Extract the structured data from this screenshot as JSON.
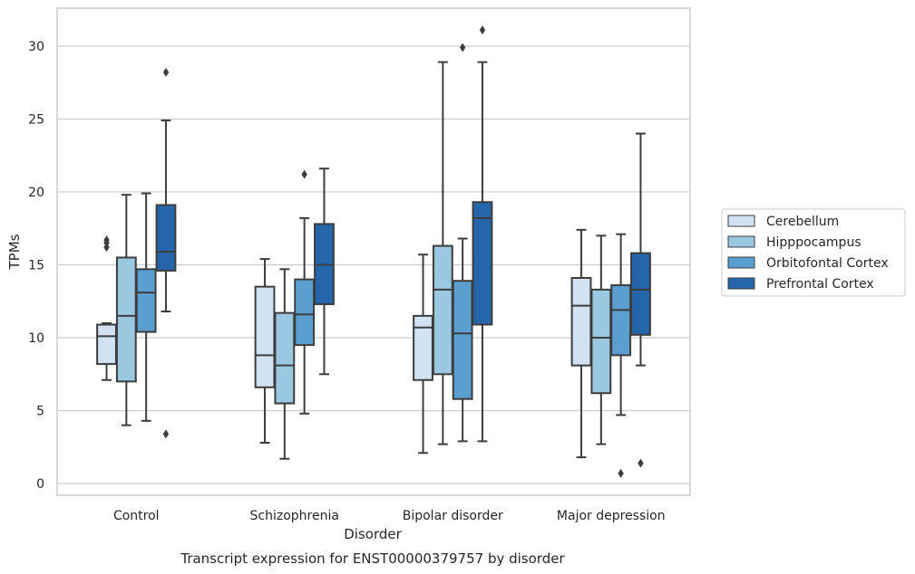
{
  "chart_data": {
    "type": "box",
    "title": "",
    "caption": "Transcript expression for ENST00000379757 by disorder",
    "xlabel": "Disorder",
    "ylabel": "TPMs",
    "ylim": [
      -0.8,
      32.6
    ],
    "yticks": [
      0,
      5,
      10,
      15,
      20,
      25,
      30
    ],
    "grid": "horizontal",
    "legend_position": "right",
    "categories": [
      "Control",
      "Schizophrenia",
      "Bipolar disorder",
      "Major depression"
    ],
    "series": [
      {
        "name": "Cerebellum",
        "color": "#d1e2f2",
        "boxes": [
          {
            "whislo": 7.1,
            "q1": 8.2,
            "med": 10.1,
            "q3": 10.9,
            "whishi": 11.0,
            "fliers": [
              16.2,
              16.5,
              16.7
            ]
          },
          {
            "whislo": 2.8,
            "q1": 6.6,
            "med": 8.8,
            "q3": 13.5,
            "whishi": 15.4,
            "fliers": []
          },
          {
            "whislo": 2.1,
            "q1": 7.1,
            "med": 10.7,
            "q3": 11.5,
            "whishi": 15.7,
            "fliers": []
          },
          {
            "whislo": 1.8,
            "q1": 8.1,
            "med": 12.2,
            "q3": 14.1,
            "whishi": 17.4,
            "fliers": []
          }
        ]
      },
      {
        "name": "Hipppocampus",
        "color": "#9ac8e0",
        "boxes": [
          {
            "whislo": 4.0,
            "q1": 7.0,
            "med": 11.5,
            "q3": 15.5,
            "whishi": 19.8,
            "fliers": []
          },
          {
            "whislo": 1.7,
            "q1": 5.5,
            "med": 8.1,
            "q3": 11.7,
            "whishi": 14.7,
            "fliers": []
          },
          {
            "whislo": 2.7,
            "q1": 7.5,
            "med": 13.3,
            "q3": 16.3,
            "whishi": 28.9,
            "fliers": []
          },
          {
            "whislo": 2.7,
            "q1": 6.2,
            "med": 10.0,
            "q3": 13.3,
            "whishi": 17.0,
            "fliers": []
          }
        ]
      },
      {
        "name": "Orbitofontal Cortex",
        "color": "#5a9fcf",
        "boxes": [
          {
            "whislo": 4.3,
            "q1": 10.4,
            "med": 13.1,
            "q3": 14.7,
            "whishi": 19.9,
            "fliers": []
          },
          {
            "whislo": 4.8,
            "q1": 9.5,
            "med": 11.6,
            "q3": 14.0,
            "whishi": 18.2,
            "fliers": [
              21.2
            ]
          },
          {
            "whislo": 2.9,
            "q1": 5.8,
            "med": 10.3,
            "q3": 13.9,
            "whishi": 16.8,
            "fliers": [
              29.9
            ]
          },
          {
            "whislo": 4.7,
            "q1": 8.8,
            "med": 11.9,
            "q3": 13.6,
            "whishi": 17.1,
            "fliers": [
              0.7
            ]
          }
        ]
      },
      {
        "name": "Prefrontal Cortex",
        "color": "#2566ab",
        "boxes": [
          {
            "whislo": 11.8,
            "q1": 14.6,
            "med": 15.9,
            "q3": 19.1,
            "whishi": 24.9,
            "fliers": [
              28.2,
              3.4
            ]
          },
          {
            "whislo": 7.5,
            "q1": 12.3,
            "med": 15.0,
            "q3": 17.8,
            "whishi": 21.6,
            "fliers": []
          },
          {
            "whislo": 2.9,
            "q1": 10.9,
            "med": 18.2,
            "q3": 19.3,
            "whishi": 28.9,
            "fliers": [
              31.1
            ]
          },
          {
            "whislo": 8.1,
            "q1": 10.2,
            "med": 13.3,
            "q3": 15.8,
            "whishi": 24.0,
            "fliers": [
              1.4
            ]
          }
        ]
      }
    ]
  }
}
